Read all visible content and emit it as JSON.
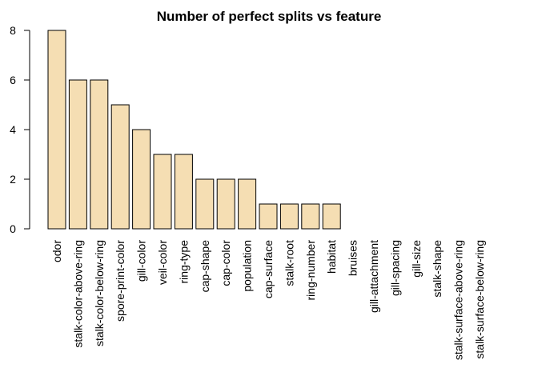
{
  "chart_data": {
    "type": "bar",
    "title": "Number of perfect splits vs feature",
    "xlabel": "",
    "ylabel": "",
    "categories": [
      "odor",
      "stalk-color-above-ring",
      "stalk-color-below-ring",
      "spore-print-color",
      "gill-color",
      "veil-color",
      "ring-type",
      "cap-shape",
      "cap-color",
      "population",
      "cap-surface",
      "stalk-root",
      "ring-number",
      "habitat",
      "bruises",
      "gill-attachment",
      "gill-spacing",
      "gill-size",
      "stalk-shape",
      "stalk-surface-above-ring",
      "stalk-surface-below-ring"
    ],
    "values": [
      8,
      6,
      6,
      5,
      4,
      3,
      3,
      2,
      2,
      2,
      1,
      1,
      1,
      1,
      0,
      0,
      0,
      0,
      0,
      0,
      0
    ],
    "ylim": [
      0,
      8
    ],
    "yticks": [
      0,
      2,
      4,
      6,
      8
    ],
    "grid": false,
    "bar_color": "#F5DEB3"
  }
}
